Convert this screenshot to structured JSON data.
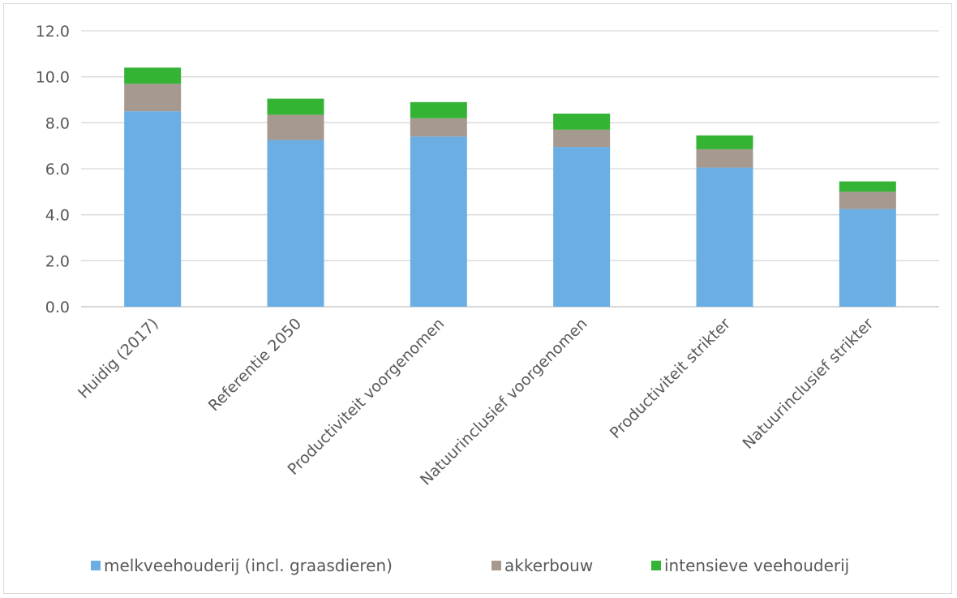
{
  "chart_data": {
    "type": "bar",
    "stacked": true,
    "categories": [
      "Huidig (2017)",
      "Referentie 2050",
      "Productiviteit voorgenomen",
      "Natuurinclusief voorgenomen",
      "Productiviteit strikter",
      "Natuurinclusief strikter"
    ],
    "series": [
      {
        "name": "melkveehouderij (incl. graasdieren)",
        "color": "#6aaee3",
        "values": [
          8.5,
          7.25,
          7.4,
          6.95,
          6.05,
          4.25
        ]
      },
      {
        "name": "akkerbouw",
        "color": "#a6998f",
        "values": [
          1.2,
          1.1,
          0.8,
          0.75,
          0.8,
          0.75
        ]
      },
      {
        "name": "intensieve veehouderij",
        "color": "#35b335",
        "values": [
          0.7,
          0.7,
          0.7,
          0.7,
          0.6,
          0.45
        ]
      }
    ],
    "ylim": [
      0,
      12
    ],
    "yticks": [
      "0.0",
      "2.0",
      "4.0",
      "6.0",
      "8.0",
      "10.0",
      "12.0"
    ],
    "ytick_values": [
      0,
      2,
      4,
      6,
      8,
      10,
      12
    ],
    "grid": true,
    "legend": "bottom"
  }
}
